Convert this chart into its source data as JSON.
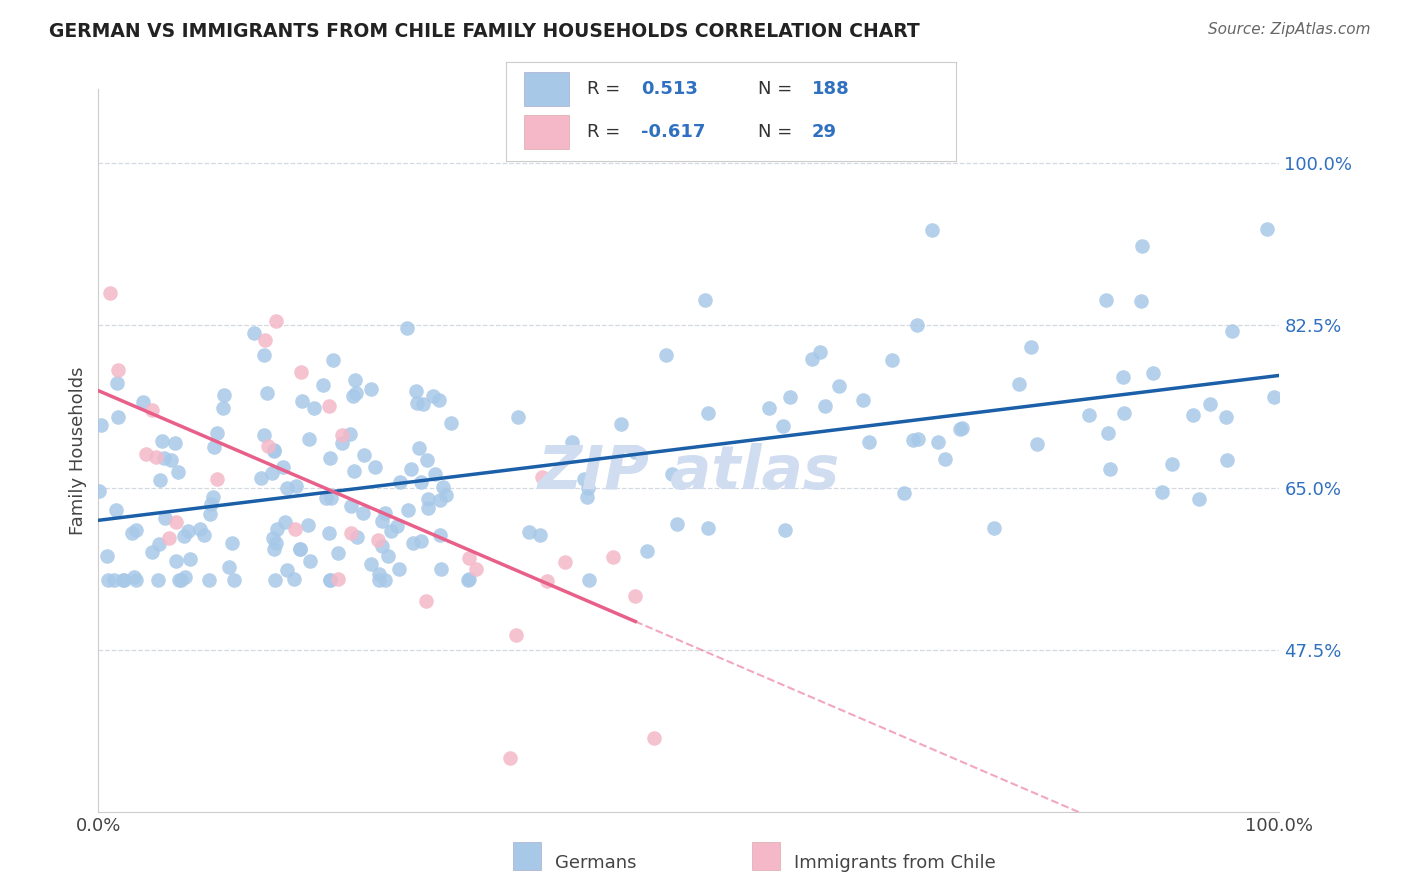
{
  "title": "GERMAN VS IMMIGRANTS FROM CHILE FAMILY HOUSEHOLDS CORRELATION CHART",
  "source": "Source: ZipAtlas.com",
  "ylabel": "Family Households",
  "r1": 0.513,
  "n1": 188,
  "r2": -0.617,
  "n2": 29,
  "blue_scatter_color": "#a8c8e8",
  "pink_scatter_color": "#f4b8c8",
  "blue_line_color": "#1a5fa8",
  "pink_line_color": "#e8608a",
  "title_color": "#222222",
  "source_color": "#666666",
  "legend_value_color": "#3070c0",
  "watermark_color": "#d0ddf0",
  "y_tick_labels": [
    "47.5%",
    "65.0%",
    "82.5%",
    "100.0%"
  ],
  "y_tick_values": [
    0.475,
    0.65,
    0.825,
    1.0
  ],
  "xlim": [
    0.0,
    1.0
  ],
  "ylim": [
    0.3,
    1.08
  ],
  "background_color": "#ffffff",
  "grid_color": "#c8d0d8"
}
